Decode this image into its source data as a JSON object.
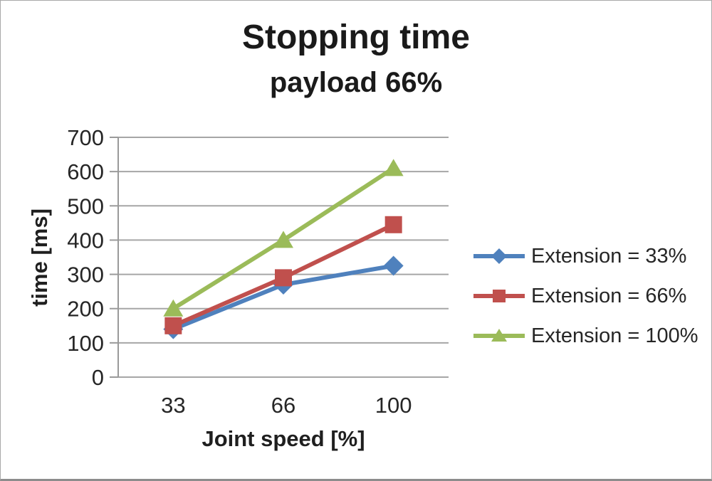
{
  "chart_data": {
    "type": "line",
    "title": "Stopping time",
    "subtitle": "payload 66%",
    "xlabel": "Joint speed [%]",
    "ylabel": "time [ms]",
    "categories": [
      "33",
      "66",
      "100"
    ],
    "series": [
      {
        "name": "Extension = 33%",
        "marker": "diamond",
        "color": "#4F81BD",
        "values": [
          140,
          270,
          325
        ]
      },
      {
        "name": "Extension = 66%",
        "marker": "square",
        "color": "#C0504D",
        "values": [
          150,
          290,
          445
        ]
      },
      {
        "name": "Extension = 100%",
        "marker": "triangle",
        "color": "#9BBB59",
        "values": [
          200,
          400,
          610
        ]
      }
    ],
    "ylim": [
      0,
      700
    ],
    "ytick_step": 100,
    "yticks": [
      "0",
      "100",
      "200",
      "300",
      "400",
      "500",
      "600",
      "700"
    ],
    "grid": true,
    "legend_position": "right",
    "styles": {
      "grid_color": "#a6a6a6",
      "axis_color": "#9a9a9a",
      "text_color": "#262626",
      "frame_border_color": "#a9a9a9"
    }
  }
}
